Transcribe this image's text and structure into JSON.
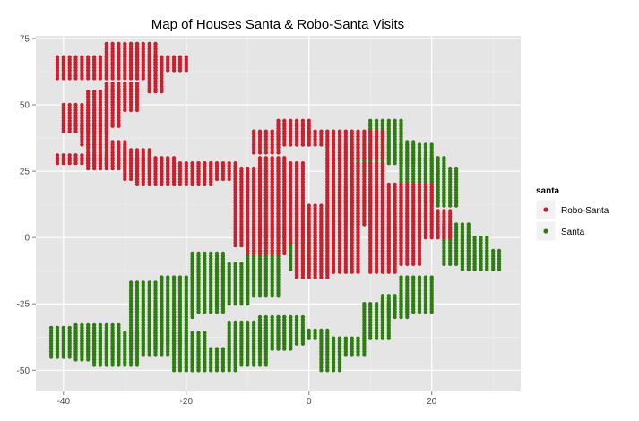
{
  "chart_data": {
    "type": "scatter",
    "title": "Map of Houses Santa & Robo-Santa Visits",
    "xlabel": "",
    "ylabel": "",
    "xlim": [
      -44.5,
      34.5
    ],
    "ylim": [
      -58,
      76
    ],
    "x_ticks": [
      -40,
      -20,
      0,
      20
    ],
    "y_ticks": [
      -50,
      -25,
      0,
      25,
      50,
      75
    ],
    "x_tick_labels": [
      "-40",
      "-20",
      "0",
      "20"
    ],
    "y_tick_labels": [
      "-50",
      "-25",
      "0",
      "25",
      "50",
      "75"
    ],
    "grid": true,
    "legend": {
      "title": "santa",
      "position": "right",
      "entries": [
        {
          "label": "Robo-Santa",
          "color": "#cc1f2e"
        },
        {
          "label": "Santa",
          "color": "#2e7d10"
        }
      ]
    },
    "series": [
      {
        "name": "Santa",
        "color": "#2e7d10",
        "regions": [
          [
            -42,
            -35,
            -34,
            -45
          ],
          [
            -38,
            -31,
            -33,
            -46
          ],
          [
            -35,
            -28,
            -36,
            -48
          ],
          [
            -29,
            -25,
            -17,
            -42
          ],
          [
            -27,
            -22,
            -28,
            -44
          ],
          [
            -25,
            -20,
            -30,
            -40
          ],
          [
            -24,
            -19,
            -15,
            -30
          ],
          [
            -22,
            -17,
            -36,
            -50
          ],
          [
            -20,
            -12,
            -42,
            -50
          ],
          [
            -19,
            -14,
            -6,
            -28
          ],
          [
            -15,
            -10,
            -10,
            -25
          ],
          [
            -13,
            -7,
            -32,
            -48
          ],
          [
            -10,
            -5,
            -5,
            -22
          ],
          [
            -8,
            -3,
            -30,
            -42
          ],
          [
            -5,
            -1,
            -30,
            -40
          ],
          [
            -3,
            1,
            -2,
            -12
          ],
          [
            -1,
            3,
            -35,
            -38
          ],
          [
            2,
            5,
            -38,
            -50
          ],
          [
            5,
            9,
            -38,
            -44
          ],
          [
            9,
            13,
            -25,
            -38
          ],
          [
            12,
            16,
            -22,
            -30
          ],
          [
            15,
            20,
            -15,
            -28
          ],
          [
            8,
            12,
            38,
            22
          ],
          [
            10,
            15,
            44,
            30
          ],
          [
            13,
            17,
            36,
            28
          ],
          [
            15,
            20,
            35,
            20
          ],
          [
            18,
            22,
            30,
            14
          ],
          [
            20,
            24,
            26,
            12
          ],
          [
            22,
            26,
            5,
            -10
          ],
          [
            25,
            29,
            0,
            -12
          ],
          [
            27,
            31,
            -5,
            -12
          ],
          [
            4,
            10,
            20,
            5
          ]
        ]
      },
      {
        "name": "Robo-Santa",
        "color": "#cc1f2e",
        "regions": [
          [
            -41,
            -33,
            68,
            60
          ],
          [
            -33,
            -28,
            73,
            60
          ],
          [
            -29,
            -25,
            73,
            60
          ],
          [
            -26,
            -24,
            67,
            55
          ],
          [
            -25,
            -20,
            68,
            63
          ],
          [
            -40,
            -33,
            50,
            40
          ],
          [
            -36,
            -31,
            55,
            42
          ],
          [
            -33,
            -28,
            58,
            48
          ],
          [
            -37,
            -33,
            42,
            35
          ],
          [
            -41,
            -33,
            31,
            28
          ],
          [
            -36,
            -30,
            36,
            26
          ],
          [
            -30,
            -26,
            33,
            22
          ],
          [
            -28,
            -22,
            30,
            20
          ],
          [
            -24,
            -16,
            28,
            20
          ],
          [
            -18,
            -12,
            28,
            22
          ],
          [
            -12,
            -8,
            26,
            18
          ],
          [
            -12,
            -6,
            25,
            -3
          ],
          [
            -8,
            -4,
            30,
            0
          ],
          [
            -5,
            -1,
            28,
            -2
          ],
          [
            -9,
            -5,
            40,
            32
          ],
          [
            -5,
            0,
            44,
            35
          ],
          [
            -1,
            4,
            40,
            35
          ],
          [
            -2,
            3,
            12,
            -15
          ],
          [
            3,
            7,
            36,
            10
          ],
          [
            5,
            12,
            40,
            30
          ],
          [
            2,
            8,
            10,
            -13
          ],
          [
            7,
            12,
            28,
            5
          ],
          [
            10,
            15,
            20,
            -5
          ],
          [
            12,
            18,
            10,
            -10
          ],
          [
            15,
            20,
            20,
            5
          ],
          [
            18,
            23,
            10,
            0
          ],
          [
            10,
            14,
            -5,
            -13
          ],
          [
            -10,
            -4,
            -2,
            -6
          ]
        ]
      }
    ]
  }
}
